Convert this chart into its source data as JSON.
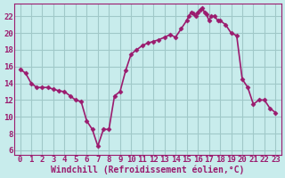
{
  "title": "",
  "xlabel": "Windchill (Refroidissement éolien,°C)",
  "ylabel": "",
  "bg_color": "#c8ecec",
  "grid_color": "#a0c8c8",
  "line_color": "#9b1b6e",
  "marker_color": "#9b1b6e",
  "xlim": [
    -0.5,
    23.5
  ],
  "ylim": [
    5.5,
    23.5
  ],
  "yticks": [
    6,
    8,
    10,
    12,
    14,
    16,
    18,
    20,
    22
  ],
  "xticks": [
    0,
    1,
    2,
    3,
    4,
    5,
    6,
    7,
    8,
    9,
    10,
    11,
    12,
    13,
    14,
    15,
    16,
    17,
    18,
    19,
    20,
    21,
    22,
    23
  ],
  "x": [
    0,
    0.5,
    1,
    1.5,
    2,
    2.5,
    3,
    3.5,
    4,
    4.5,
    5,
    5.5,
    6,
    6.5,
    7,
    7.5,
    8,
    8.5,
    9,
    9.5,
    10,
    10.5,
    11,
    11.5,
    12,
    12.5,
    13,
    13.5,
    14,
    14.5,
    15,
    15.2,
    15.4,
    15.6,
    15.8,
    16,
    16.2,
    16.4,
    16.6,
    16.8,
    17,
    17.2,
    17.5,
    17.8,
    18,
    18.5,
    19,
    19.5,
    20,
    20.5,
    21,
    21.5,
    22,
    22.5,
    23
  ],
  "y": [
    15.7,
    15.2,
    14.0,
    13.5,
    13.5,
    13.5,
    13.3,
    13.1,
    13.0,
    12.5,
    12.0,
    11.8,
    9.5,
    8.5,
    6.5,
    8.5,
    8.5,
    12.5,
    13.0,
    15.5,
    17.5,
    18.0,
    18.5,
    18.8,
    19.0,
    19.2,
    19.5,
    19.8,
    19.5,
    20.5,
    21.5,
    22.0,
    22.5,
    22.3,
    22.0,
    22.5,
    22.8,
    23.0,
    22.5,
    22.2,
    21.5,
    22.0,
    22.0,
    21.5,
    21.5,
    21.0,
    20.0,
    19.7,
    14.5,
    13.5,
    11.5,
    12.0,
    12.0,
    11.0,
    10.5
  ],
  "marker_indices": [
    0,
    2,
    4,
    6,
    8,
    10,
    12,
    14,
    16,
    18,
    20,
    22,
    24,
    26,
    28,
    30,
    32,
    34,
    36,
    38,
    40,
    42,
    44,
    46,
    48,
    50,
    52,
    54
  ],
  "xlabel_fontsize": 7,
  "tick_fontsize": 6.5,
  "linewidth": 1.2,
  "markersize": 2.5
}
